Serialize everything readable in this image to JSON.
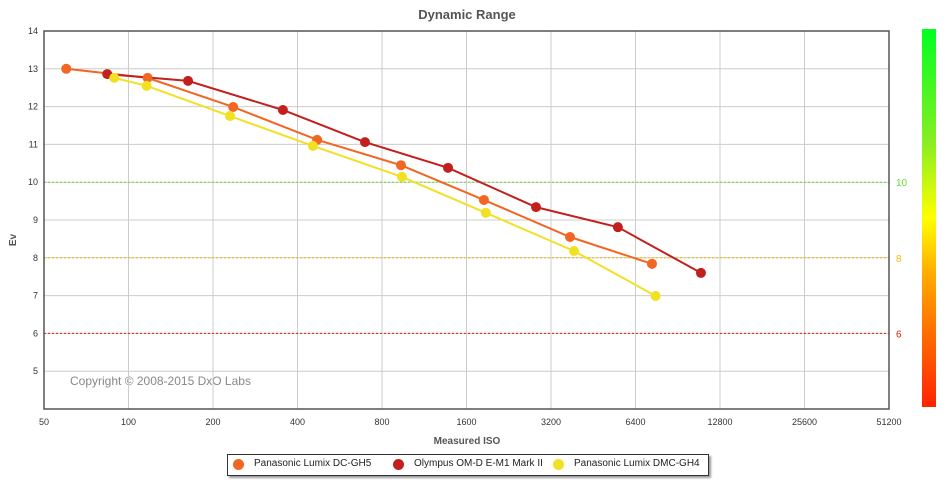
{
  "chart_data": {
    "type": "line",
    "title": "Dynamic Range",
    "xlabel": "Measured ISO",
    "ylabel": "Ev",
    "xscale": "log2",
    "xlim": [
      50,
      51200
    ],
    "ylim": [
      4,
      14
    ],
    "xticks": [
      "50",
      "100",
      "200",
      "400",
      "800",
      "1600",
      "3200",
      "6400",
      "12800",
      "25600",
      "51200"
    ],
    "yticks": [
      "5",
      "6",
      "7",
      "8",
      "9",
      "10",
      "11",
      "12",
      "13",
      "14"
    ],
    "reference_lines": [
      {
        "value": 10,
        "label": "10",
        "color": "#66dd33"
      },
      {
        "value": 8,
        "label": "8",
        "color": "#f5b800"
      },
      {
        "value": 6,
        "label": "6",
        "color": "#dd2200"
      }
    ],
    "copyright": "Copyright © 2008-2015 DxO Labs",
    "series": [
      {
        "name": "Panasonic Lumix DC-GH5",
        "color": "#f26522",
        "x": [
          60,
          117,
          236,
          470,
          935,
          1846,
          3740,
          7326
        ],
        "y": [
          13.0,
          12.76,
          11.99,
          11.12,
          10.45,
          9.53,
          8.55,
          7.84
        ]
      },
      {
        "name": "Olympus OM-D E-M1 Mark II",
        "color": "#c1201c",
        "x": [
          84,
          163,
          355,
          696,
          1375,
          2830,
          5540,
          10950
        ],
        "y": [
          12.86,
          12.68,
          11.91,
          11.06,
          10.38,
          9.34,
          8.81,
          7.6
        ]
      },
      {
        "name": "Panasonic Lumix DMC-GH4",
        "color": "#f2e024",
        "x": [
          89,
          116,
          230,
          454,
          943,
          1875,
          3865,
          7550
        ],
        "y": [
          12.76,
          12.55,
          11.75,
          10.96,
          10.14,
          9.19,
          8.18,
          6.99
        ]
      }
    ]
  }
}
